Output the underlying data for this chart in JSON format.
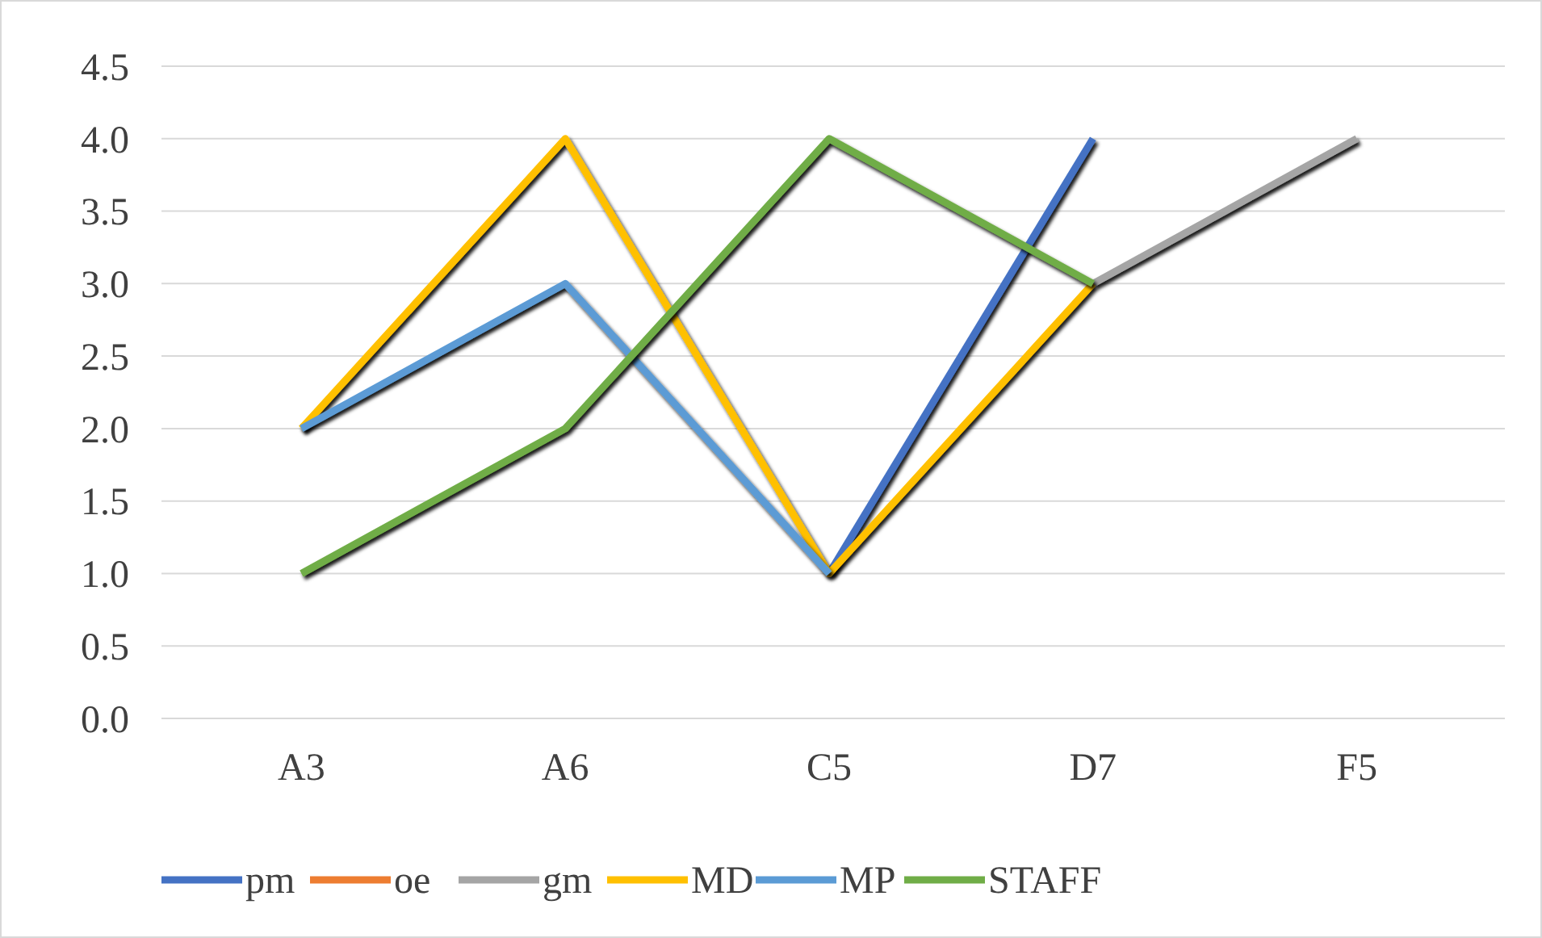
{
  "chart_data": {
    "type": "line",
    "categories": [
      "A3",
      "A6",
      "C5",
      "D7",
      "F5"
    ],
    "series": [
      {
        "name": "pm",
        "color": "#4472c4",
        "values": [
          null,
          null,
          1,
          4,
          null
        ]
      },
      {
        "name": "oe",
        "color": "#ed7d31",
        "values": [
          null,
          null,
          null,
          null,
          null
        ]
      },
      {
        "name": "gm",
        "color": "#a5a5a5",
        "values": [
          null,
          null,
          null,
          3,
          4
        ]
      },
      {
        "name": "MD",
        "color": "#ffc000",
        "values": [
          2,
          4,
          1,
          3,
          null
        ]
      },
      {
        "name": "MP",
        "color": "#5b9bd5",
        "values": [
          2,
          3,
          1,
          null,
          null
        ]
      },
      {
        "name": "STAFF",
        "color": "#70ad47",
        "values": [
          1,
          2,
          4,
          3,
          null
        ]
      }
    ],
    "ylim": [
      0,
      4.5
    ],
    "yticks": [
      {
        "value": 0,
        "label": "0.0"
      },
      {
        "value": 0.5,
        "label": "0.5"
      },
      {
        "value": 1,
        "label": "1.0"
      },
      {
        "value": 1.5,
        "label": "1.5"
      },
      {
        "value": 2,
        "label": "2.0"
      },
      {
        "value": 2.5,
        "label": "2.5"
      },
      {
        "value": 3,
        "label": "3.0"
      },
      {
        "value": 3.5,
        "label": "3.5"
      },
      {
        "value": 4,
        "label": "4.0"
      },
      {
        "value": 4.5,
        "label": "4.5"
      }
    ],
    "grid": "y",
    "legend": "bottom",
    "marker": "none",
    "line_style": "solid"
  }
}
